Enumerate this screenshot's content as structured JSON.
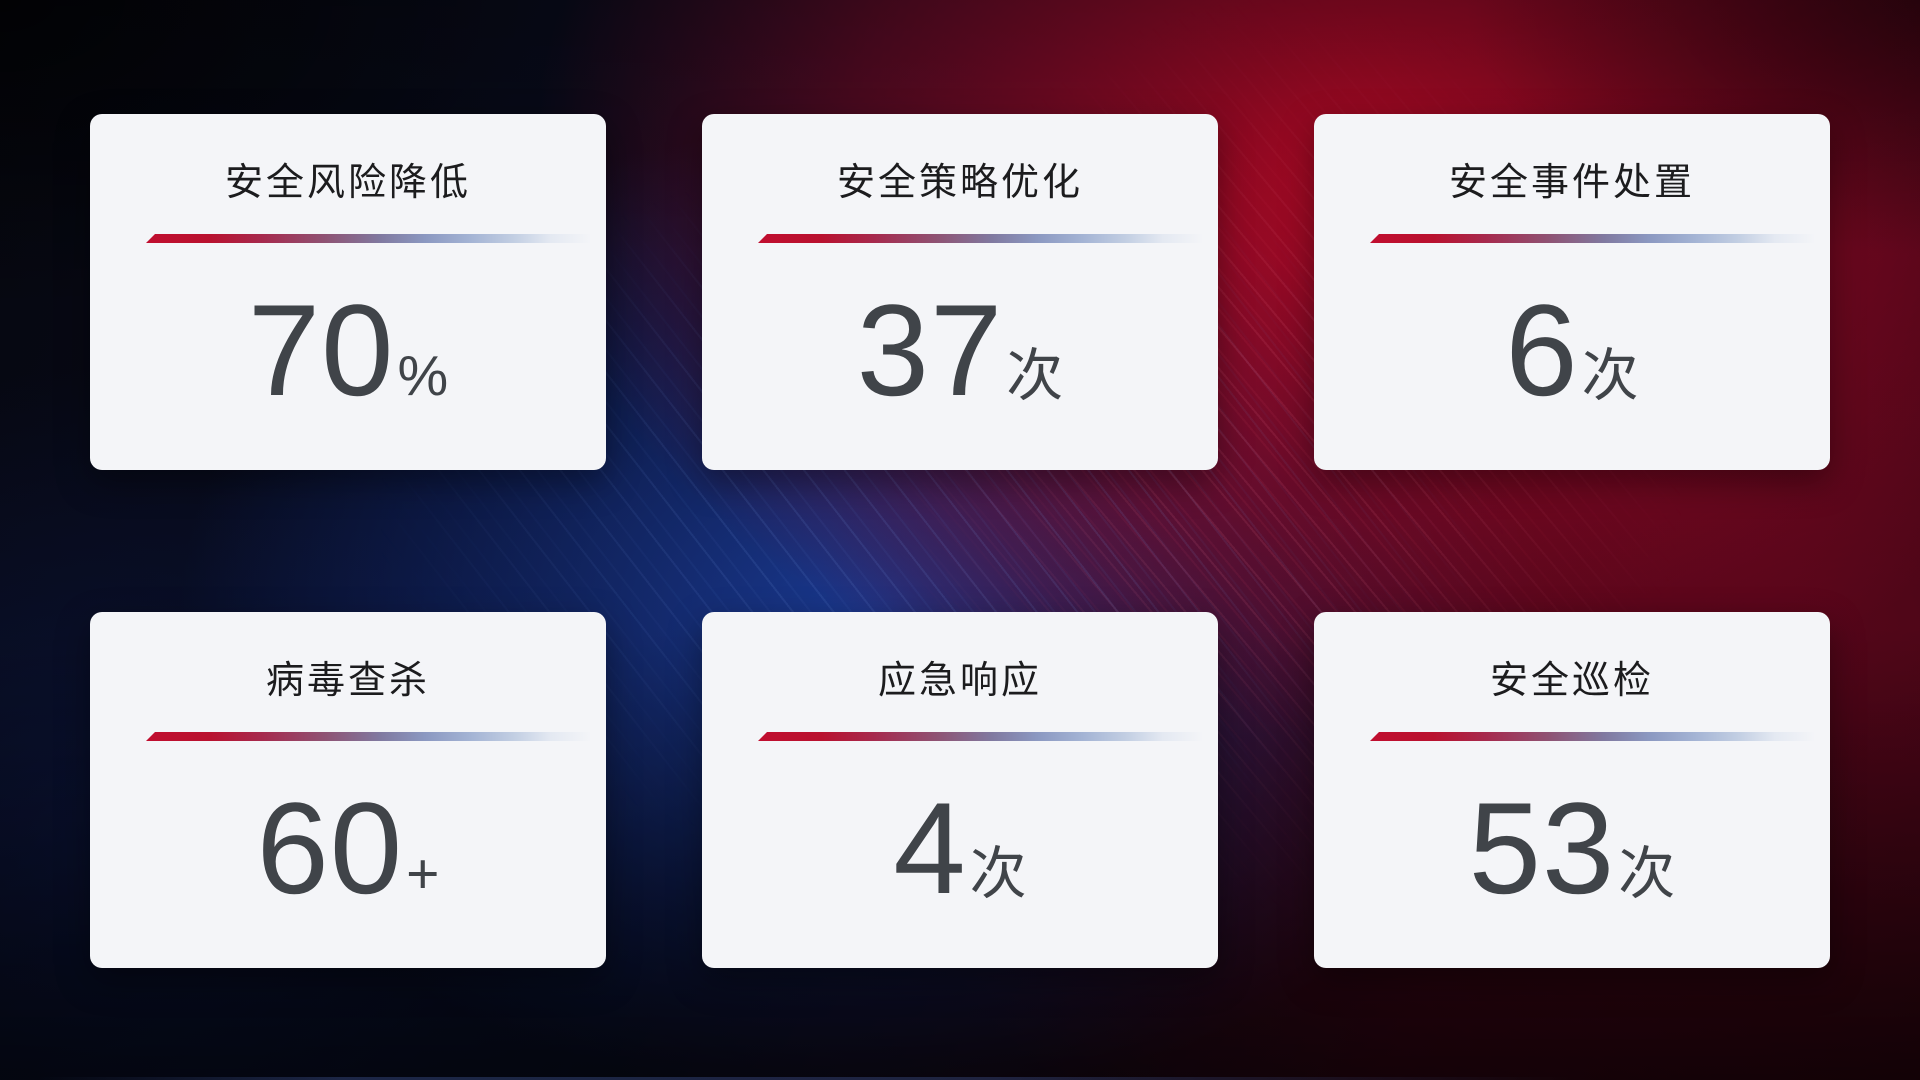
{
  "theme": {
    "card_bg": "#f4f5f8",
    "title_color": "#1c1c1e",
    "value_color": "#404449",
    "accent_red": "#c00e2f",
    "divider_blue": "#a3b3d4",
    "bg_blue": "#1b3a8e",
    "bg_red": "#b00a1e"
  },
  "cards": [
    {
      "id": "risk-reduction",
      "title": "安全风险降低",
      "value": "70",
      "unit": "%"
    },
    {
      "id": "policy-optimization",
      "title": "安全策略优化",
      "value": "37",
      "unit": "次"
    },
    {
      "id": "incident-handling",
      "title": "安全事件处置",
      "value": "6",
      "unit": "次"
    },
    {
      "id": "virus-scan",
      "title": "病毒查杀",
      "value": "60",
      "unit": "+"
    },
    {
      "id": "emergency-response",
      "title": "应急响应",
      "value": "4",
      "unit": "次"
    },
    {
      "id": "security-inspection",
      "title": "安全巡检",
      "value": "53",
      "unit": "次"
    }
  ]
}
